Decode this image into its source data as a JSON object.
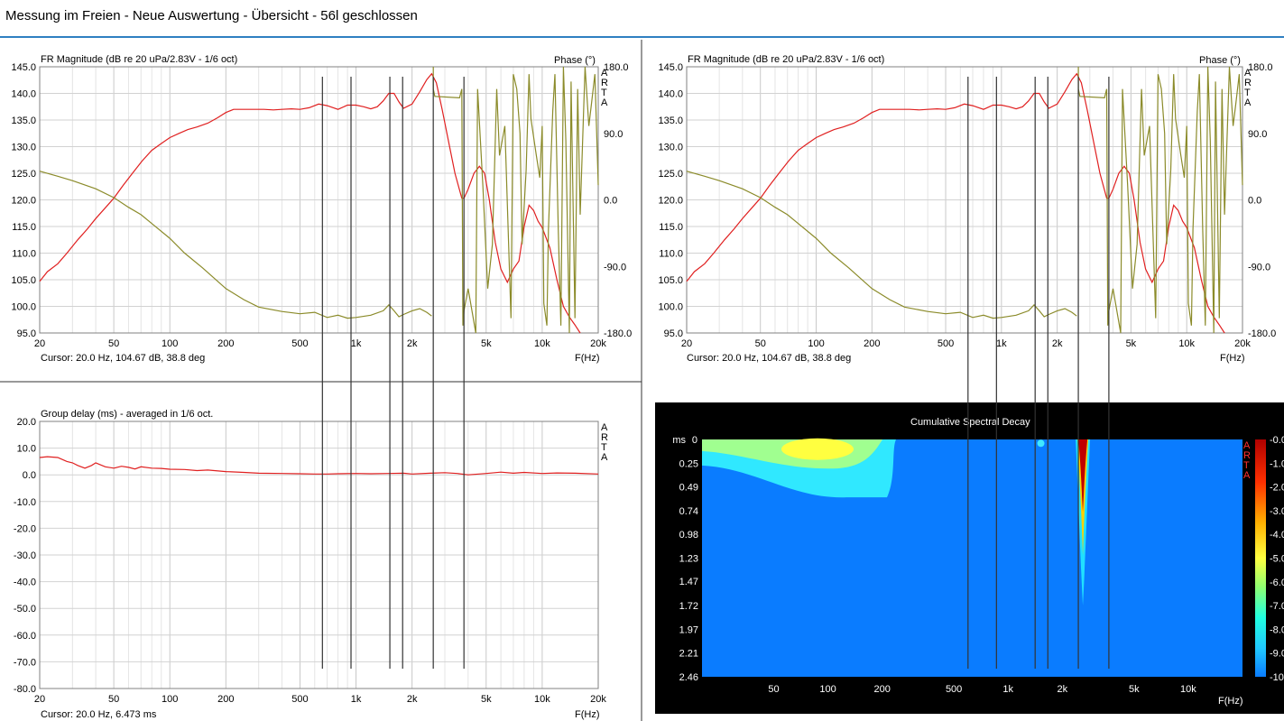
{
  "window_title": "Messung im Freien - Neue Auswertung - Übersicht - 56l geschlossen",
  "fr_panels": [
    {
      "title": "FR Magnitude (dB re 20 uPa/2.83V - 1/6 oct)",
      "phase_label": "Phase (°)",
      "brand": [
        "A",
        "R",
        "T",
        "A"
      ],
      "cursor": "Cursor: 20.0 Hz, 104.67 dB, 38.8 deg",
      "xlabel": "F(Hz)"
    },
    {
      "title": "FR Magnitude (dB re 20 uPa/2.83V - 1/6 oct)",
      "phase_label": "Phase (°)",
      "brand": [
        "A",
        "R",
        "T",
        "A"
      ],
      "cursor": "Cursor: 20.0 Hz, 104.67 dB, 38.8 deg",
      "xlabel": "F(Hz)"
    }
  ],
  "gd_panel": {
    "title": "Group delay (ms) - averaged in 1/6 oct.",
    "brand": [
      "A",
      "R",
      "T",
      "A"
    ],
    "cursor": "Cursor: 20.0 Hz, 6.473 ms",
    "xlabel": "F(Hz)"
  },
  "csd_panel": {
    "title": "Cumulative Spectral Decay",
    "ms_label": "ms",
    "brand": [
      "A",
      "R",
      "T",
      "A"
    ],
    "xlabel": "F(Hz)"
  },
  "chart_data": [
    {
      "type": "line",
      "title": "FR Magnitude (dB re 20 uPa/2.83V - 1/6 oct)",
      "xlabel": "F(Hz)",
      "y2label": "Phase (°)",
      "xscale": "log",
      "xlim": [
        20,
        20000
      ],
      "ylim": [
        95,
        145
      ],
      "y2lim": [
        -180,
        180
      ],
      "grid": true,
      "x_ticks": [
        20,
        50,
        100,
        200,
        500,
        1000,
        2000,
        5000,
        10000,
        20000
      ],
      "x_tick_labels": [
        "20",
        "50",
        "100",
        "200",
        "500",
        "1k",
        "2k",
        "5k",
        "10k",
        "20k"
      ],
      "y_ticks": [
        95,
        100,
        105,
        110,
        115,
        120,
        125,
        130,
        135,
        140,
        145
      ],
      "y_tick_labels": [
        "95.0",
        "100.0",
        "105.0",
        "110.0",
        "115.0",
        "120.0",
        "125.0",
        "130.0",
        "135.0",
        "140.0",
        "145.0"
      ],
      "y2_ticks": [
        -180,
        -90,
        0,
        90,
        180
      ],
      "y2_tick_labels": [
        "-180.0",
        "-90.0",
        "0.0",
        "90.0",
        "180.0"
      ],
      "markers_hz": [
        660,
        940,
        1520,
        1780,
        2600,
        3800
      ],
      "series": [
        {
          "axis": "left",
          "color": "#e02020",
          "x": [
            20,
            22,
            25,
            28,
            32,
            36,
            40,
            45,
            50,
            56,
            63,
            71,
            80,
            90,
            100,
            112,
            125,
            140,
            160,
            180,
            200,
            220,
            250,
            280,
            320,
            360,
            400,
            450,
            500,
            560,
            630,
            700,
            800,
            900,
            1000,
            1100,
            1200,
            1300,
            1400,
            1500,
            1600,
            1700,
            1800,
            2000,
            2200,
            2400,
            2550,
            2700,
            2900,
            3100,
            3400,
            3700,
            3800,
            4000,
            4300,
            4600,
            4900,
            5200,
            5600,
            6000,
            6500,
            7000,
            7500,
            8000,
            8500,
            9000,
            9500,
            10000,
            11000,
            12000,
            13000,
            14000,
            15000,
            16000
          ],
          "y": [
            104.7,
            106.5,
            108,
            110,
            112.5,
            114.5,
            116.5,
            118.5,
            120.3,
            122.7,
            125,
            127.3,
            129.3,
            130.6,
            131.7,
            132.5,
            133.2,
            133.7,
            134.4,
            135.4,
            136.4,
            137,
            137,
            137,
            137,
            136.9,
            137,
            137.1,
            137,
            137.3,
            138,
            137.7,
            137,
            137.8,
            137.8,
            137.5,
            137.1,
            137.5,
            138.6,
            140,
            140,
            138.4,
            137.2,
            138,
            140.3,
            142.6,
            143.7,
            142,
            137,
            132,
            125,
            120.3,
            120.3,
            122,
            125,
            126.3,
            125,
            120,
            112,
            107,
            104.5,
            107,
            108.5,
            115,
            119,
            118,
            116,
            114.8,
            111,
            105,
            100,
            98,
            96.5,
            95
          ]
        },
        {
          "axis": "right",
          "color": "#8b8b2a",
          "x": [
            20,
            25,
            30,
            40,
            50,
            60,
            70,
            80,
            100,
            120,
            150,
            200,
            250,
            300,
            400,
            500,
            600,
            700,
            800,
            900,
            1000,
            1200,
            1400,
            1500,
            1600,
            1700,
            1800,
            2000,
            2200,
            2400,
            2550
          ],
          "y": [
            38.8,
            32,
            26,
            15,
            3,
            -10,
            -20,
            -32,
            -52,
            -72,
            -92,
            -120,
            -135,
            -145,
            -151,
            -154,
            -152,
            -159,
            -156,
            -160,
            -159,
            -156,
            -150,
            -142,
            -150,
            -158,
            -155,
            -150,
            -147,
            -152,
            -157
          ]
        }
      ]
    },
    {
      "type": "line",
      "title": "FR Magnitude (dB re 20 uPa/2.83V - 1/6 oct)",
      "xlabel": "F(Hz)",
      "y2label": "Phase (°)",
      "xscale": "log",
      "xlim": [
        20,
        20000
      ],
      "ylim": [
        95,
        145
      ],
      "y2lim": [
        -180,
        180
      ],
      "grid": true,
      "x_ticks": [
        20,
        50,
        100,
        200,
        500,
        1000,
        2000,
        5000,
        10000,
        20000
      ],
      "x_tick_labels": [
        "20",
        "50",
        "100",
        "200",
        "500",
        "1k",
        "2k",
        "5k",
        "10k",
        "20k"
      ],
      "y_ticks": [
        95,
        100,
        105,
        110,
        115,
        120,
        125,
        130,
        135,
        140,
        145
      ],
      "y_tick_labels": [
        "95.0",
        "100.0",
        "105.0",
        "110.0",
        "115.0",
        "120.0",
        "125.0",
        "130.0",
        "135.0",
        "140.0",
        "145.0"
      ],
      "y2_ticks": [
        -180,
        -90,
        0,
        90,
        180
      ],
      "y2_tick_labels": [
        "-180.0",
        "-90.0",
        "0.0",
        "90.0",
        "180.0"
      ],
      "markers_hz": [
        660,
        940,
        1520,
        1780,
        2600,
        3800
      ],
      "series": [
        {
          "axis": "left",
          "color": "#e02020",
          "x": [
            20,
            22,
            25,
            28,
            32,
            36,
            40,
            45,
            50,
            56,
            63,
            71,
            80,
            90,
            100,
            112,
            125,
            140,
            160,
            180,
            200,
            220,
            250,
            280,
            320,
            360,
            400,
            450,
            500,
            560,
            630,
            700,
            800,
            900,
            1000,
            1100,
            1200,
            1300,
            1400,
            1500,
            1600,
            1700,
            1800,
            2000,
            2200,
            2400,
            2550,
            2700,
            2900,
            3100,
            3400,
            3700,
            3800,
            4000,
            4300,
            4600,
            4900,
            5200,
            5600,
            6000,
            6500,
            7000,
            7500,
            8000,
            8500,
            9000,
            9500,
            10000,
            11000,
            12000,
            13000,
            14000,
            15000,
            16000
          ],
          "y": [
            104.7,
            106.5,
            108,
            110,
            112.5,
            114.5,
            116.5,
            118.5,
            120.3,
            122.7,
            125,
            127.3,
            129.3,
            130.6,
            131.7,
            132.5,
            133.2,
            133.7,
            134.4,
            135.4,
            136.4,
            137,
            137,
            137,
            137,
            136.9,
            137,
            137.1,
            137,
            137.3,
            138,
            137.7,
            137,
            137.8,
            137.8,
            137.5,
            137.1,
            137.5,
            138.6,
            140,
            140,
            138.4,
            137.2,
            138,
            140.3,
            142.6,
            143.7,
            142,
            137,
            132,
            125,
            120.3,
            120.3,
            122,
            125,
            126.3,
            125,
            120,
            112,
            107,
            104.5,
            107,
            108.5,
            115,
            119,
            118,
            116,
            114.8,
            111,
            105,
            100,
            98,
            96.5,
            95
          ]
        },
        {
          "axis": "right",
          "color": "#8b8b2a",
          "x": [
            20,
            25,
            30,
            40,
            50,
            60,
            70,
            80,
            100,
            120,
            150,
            200,
            250,
            300,
            400,
            500,
            600,
            700,
            800,
            900,
            1000,
            1200,
            1400,
            1500,
            1600,
            1700,
            1800,
            2000,
            2200,
            2400,
            2550
          ],
          "y": [
            38.8,
            32,
            26,
            15,
            3,
            -10,
            -20,
            -32,
            -52,
            -72,
            -92,
            -120,
            -135,
            -145,
            -151,
            -154,
            -152,
            -159,
            -156,
            -160,
            -159,
            -156,
            -150,
            -142,
            -150,
            -158,
            -155,
            -150,
            -147,
            -152,
            -157
          ]
        }
      ]
    },
    {
      "type": "line",
      "title": "Group delay (ms) - averaged in 1/6 oct.",
      "xlabel": "F(Hz)",
      "xscale": "log",
      "xlim": [
        20,
        20000
      ],
      "ylim": [
        -80,
        20
      ],
      "grid": true,
      "x_ticks": [
        20,
        50,
        100,
        200,
        500,
        1000,
        2000,
        5000,
        10000,
        20000
      ],
      "x_tick_labels": [
        "20",
        "50",
        "100",
        "200",
        "500",
        "1k",
        "2k",
        "5k",
        "10k",
        "20k"
      ],
      "y_ticks": [
        -80,
        -70,
        -60,
        -50,
        -40,
        -30,
        -20,
        -10,
        0,
        10,
        20
      ],
      "y_tick_labels": [
        "-80.0",
        "-70.0",
        "-60.0",
        "-50.0",
        "-40.0",
        "-30.0",
        "-20.0",
        "-10.0",
        "0.0",
        "10.0",
        "20.0"
      ],
      "markers_hz": [
        660,
        940,
        1520,
        1780,
        2600,
        3800
      ],
      "series": [
        {
          "color": "#e02020",
          "x": [
            20,
            22,
            25,
            28,
            30,
            32,
            35,
            38,
            40,
            45,
            50,
            55,
            60,
            65,
            70,
            80,
            90,
            100,
            120,
            140,
            160,
            200,
            250,
            300,
            400,
            500,
            600,
            700,
            800,
            1000,
            1200,
            1500,
            1800,
            2000,
            2500,
            3000,
            3500,
            4000,
            5000,
            6000,
            7000,
            8000,
            10000,
            12000,
            15000,
            20000
          ],
          "y": [
            6.5,
            6.8,
            6.5,
            5,
            4.5,
            3.5,
            2.5,
            3.5,
            4.5,
            3,
            2.5,
            3.2,
            2.8,
            2.2,
            3,
            2.5,
            2.4,
            2.1,
            2,
            1.6,
            1.8,
            1.2,
            0.9,
            0.6,
            0.5,
            0.4,
            0.3,
            0.3,
            0.4,
            0.5,
            0.4,
            0.5,
            0.6,
            0.3,
            0.6,
            0.8,
            0.5,
            0,
            0.5,
            1,
            0.6,
            0.9,
            0.5,
            0.7,
            0.6,
            0.3
          ]
        }
      ]
    },
    {
      "type": "heatmap",
      "title": "Cumulative Spectral Decay",
      "xlabel": "F(Hz)",
      "ylabel": "ms",
      "xscale": "log",
      "xlim": [
        20,
        20000
      ],
      "ylim": [
        0,
        2.46
      ],
      "x_ticks": [
        50,
        100,
        200,
        500,
        1000,
        2000,
        5000,
        10000
      ],
      "x_tick_labels": [
        "50",
        "100",
        "200",
        "500",
        "1k",
        "2k",
        "5k",
        "10k"
      ],
      "y_ticks": [
        0,
        0.25,
        0.49,
        0.74,
        0.98,
        1.23,
        1.47,
        1.72,
        1.97,
        2.21,
        2.46
      ],
      "y_tick_labels": [
        "0",
        "0.25",
        "0.49",
        "0.74",
        "0.98",
        "1.23",
        "1.47",
        "1.72",
        "1.97",
        "2.21",
        "2.46"
      ],
      "colorbar_ticks": [
        "-0.0",
        "-1.0",
        "-2.0",
        "-3.0",
        "-4.0",
        "-5.0",
        "-6.0",
        "-7.0",
        "-8.0",
        "-9.0",
        "-10"
      ],
      "colors": {
        "background": "#000000",
        "floor": "#0a7cff",
        "hot": "#a00000"
      }
    }
  ]
}
